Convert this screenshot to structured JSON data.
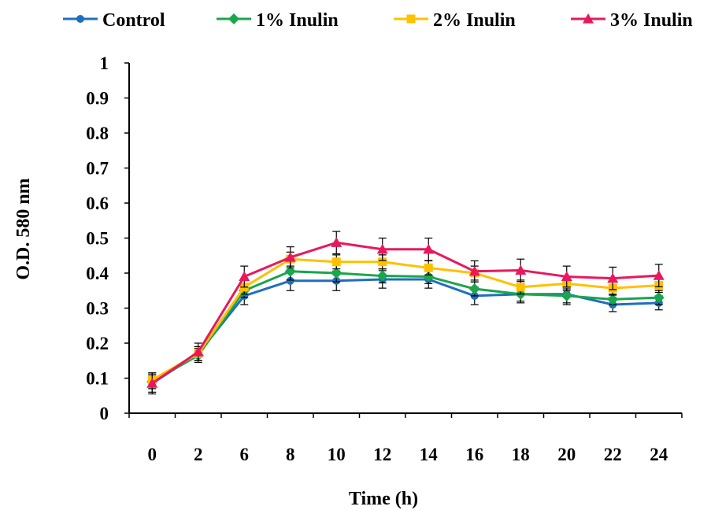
{
  "chart_data": {
    "type": "line",
    "title": "",
    "xlabel": "Time (h)",
    "ylabel": "O.D. 580 nm",
    "categories": [
      "0",
      "2",
      "6",
      "8",
      "10",
      "12",
      "14",
      "16",
      "18",
      "20",
      "22",
      "24"
    ],
    "ylim": [
      0,
      1
    ],
    "yticks": [
      "0",
      "0.1",
      "0.2",
      "0.3",
      "0.4",
      "0.5",
      "0.6",
      "0.7",
      "0.8",
      "0.9",
      "1"
    ],
    "grid": false,
    "legend_position": "top",
    "series": [
      {
        "name": "Control",
        "color": "#1f6fbf",
        "marker": "circle",
        "values": [
          0.085,
          0.17,
          0.335,
          0.378,
          0.378,
          0.382,
          0.382,
          0.335,
          0.34,
          0.34,
          0.31,
          0.315
        ],
        "errors": [
          0.03,
          0.02,
          0.025,
          0.028,
          0.028,
          0.025,
          0.025,
          0.025,
          0.025,
          0.03,
          0.02,
          0.02
        ]
      },
      {
        "name": "1% Inulin",
        "color": "#1aa64a",
        "marker": "diamond",
        "values": [
          0.09,
          0.165,
          0.35,
          0.405,
          0.4,
          0.392,
          0.39,
          0.355,
          0.34,
          0.335,
          0.325,
          0.33
        ],
        "errors": [
          0.02,
          0.02,
          0.02,
          0.025,
          0.025,
          0.02,
          0.02,
          0.02,
          0.02,
          0.02,
          0.015,
          0.02
        ]
      },
      {
        "name": "2% Inulin",
        "color": "#ffc000",
        "marker": "square",
        "values": [
          0.095,
          0.17,
          0.36,
          0.44,
          0.432,
          0.432,
          0.415,
          0.4,
          0.36,
          0.37,
          0.357,
          0.365
        ],
        "errors": [
          0.02,
          0.02,
          0.02,
          0.02,
          0.02,
          0.02,
          0.02,
          0.02,
          0.02,
          0.02,
          0.02,
          0.02
        ]
      },
      {
        "name": "3% Inulin",
        "color": "#e8185f",
        "marker": "triangle",
        "values": [
          0.085,
          0.175,
          0.39,
          0.445,
          0.487,
          0.468,
          0.468,
          0.405,
          0.408,
          0.39,
          0.385,
          0.393
        ],
        "errors": [
          0.025,
          0.025,
          0.03,
          0.03,
          0.032,
          0.032,
          0.032,
          0.03,
          0.032,
          0.03,
          0.032,
          0.032
        ]
      }
    ]
  }
}
